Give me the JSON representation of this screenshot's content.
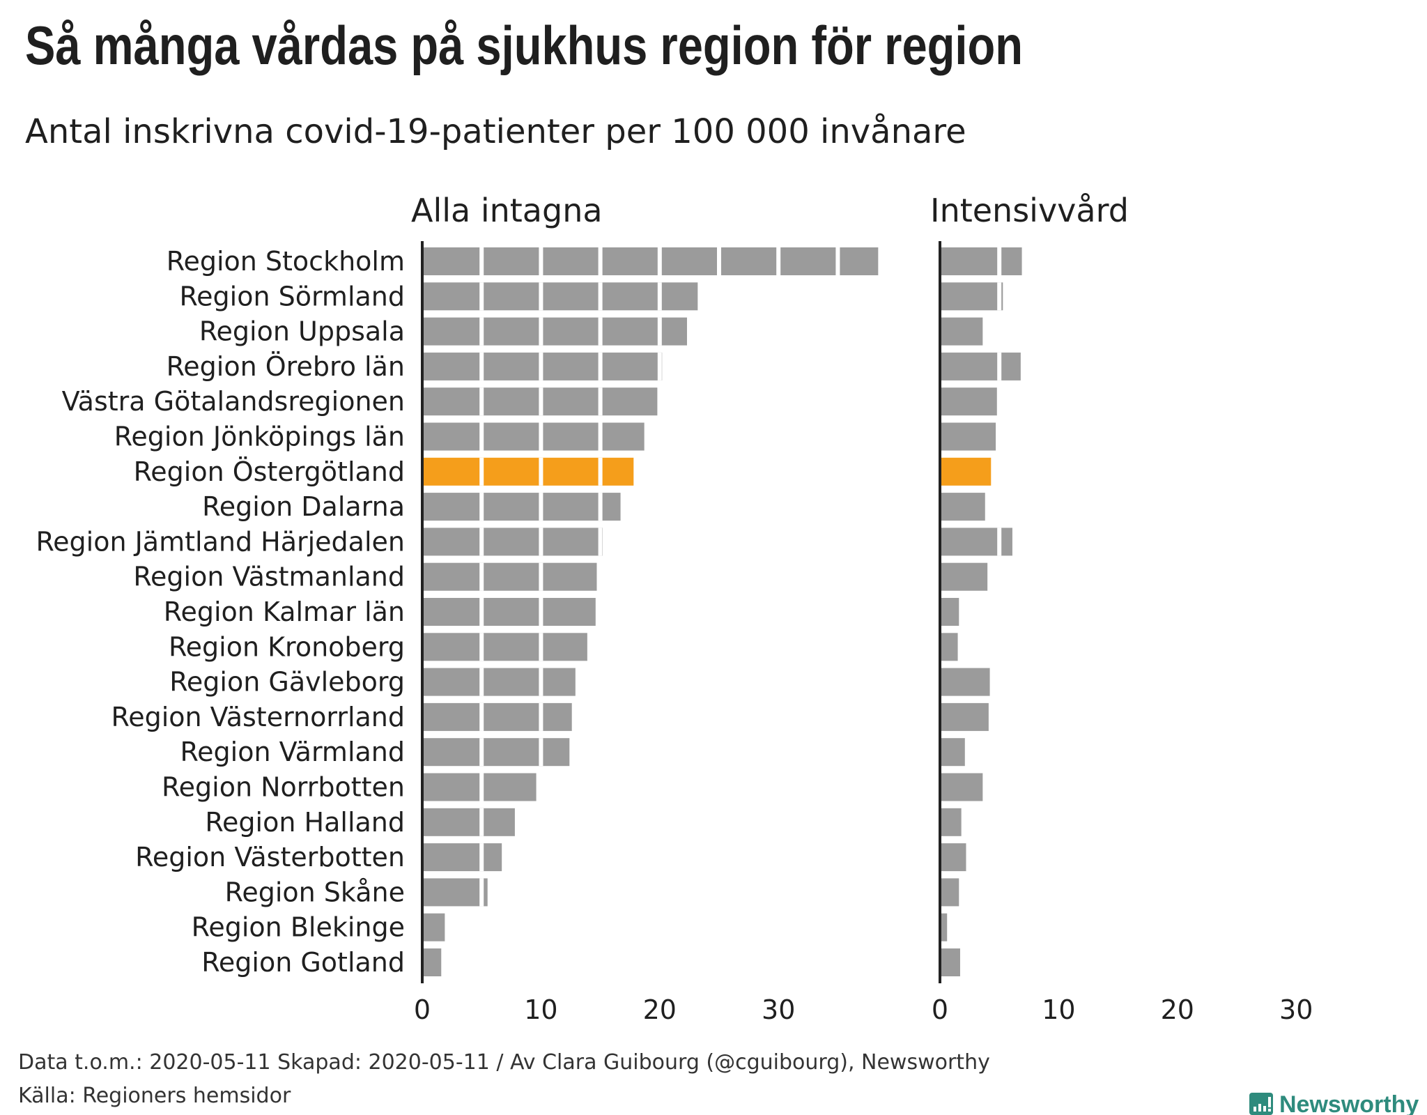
{
  "title": "Så många vårdas på sjukhus region för region",
  "subtitle": "Antal inskrivna covid-19-patienter per 100 000 invånare",
  "footer": {
    "line1": "Data t.o.m.: 2020-05-11 Skapad: 2020-05-11 / Av Clara Guibourg (@cguibourg), Newsworthy",
    "line2": "Källa: Regioners hemsidor",
    "logo_text": "Newsworthy"
  },
  "colors": {
    "default": "#9b9b9b",
    "highlight": "#f59e1b",
    "axis": "#222222",
    "logo": "#2e8b7d"
  },
  "chart_data": {
    "type": "bar",
    "orientation": "horizontal",
    "highlight": "Region Östergötland",
    "segment_step": 5,
    "categories": [
      "Region Stockholm",
      "Region Sörmland",
      "Region Uppsala",
      "Region Örebro län",
      "Västra Götalandsregionen",
      "Region Jönköpings län",
      "Region Östergötland",
      "Region Dalarna",
      "Region Jämtland Härjedalen",
      "Region Västmanland",
      "Region Kalmar län",
      "Region Kronoberg",
      "Region Gävleborg",
      "Region Västernorrland",
      "Region Värmland",
      "Region Norrbotten",
      "Region Halland",
      "Region Västerbotten",
      "Region Skåne",
      "Region Blekinge",
      "Region Gotland"
    ],
    "series": [
      {
        "name": "Alla intagna",
        "xlim": [
          0,
          40
        ],
        "ticks": [
          "0",
          "10",
          "20",
          "30"
        ],
        "values": [
          38.4,
          23.2,
          22.3,
          20.2,
          19.8,
          18.7,
          17.8,
          16.7,
          15.2,
          14.7,
          14.6,
          13.9,
          12.9,
          12.6,
          12.4,
          9.6,
          7.8,
          6.7,
          5.5,
          1.9,
          1.6
        ]
      },
      {
        "name": "Intensivvård",
        "xlim": [
          0,
          30
        ],
        "ticks": [
          "0",
          "10",
          "20",
          "30"
        ],
        "values": [
          6.9,
          5.3,
          3.6,
          6.8,
          4.8,
          4.7,
          4.3,
          3.8,
          6.1,
          4.0,
          1.6,
          1.5,
          4.2,
          4.1,
          2.1,
          3.6,
          1.8,
          2.2,
          1.6,
          0.6,
          1.7
        ]
      }
    ]
  }
}
